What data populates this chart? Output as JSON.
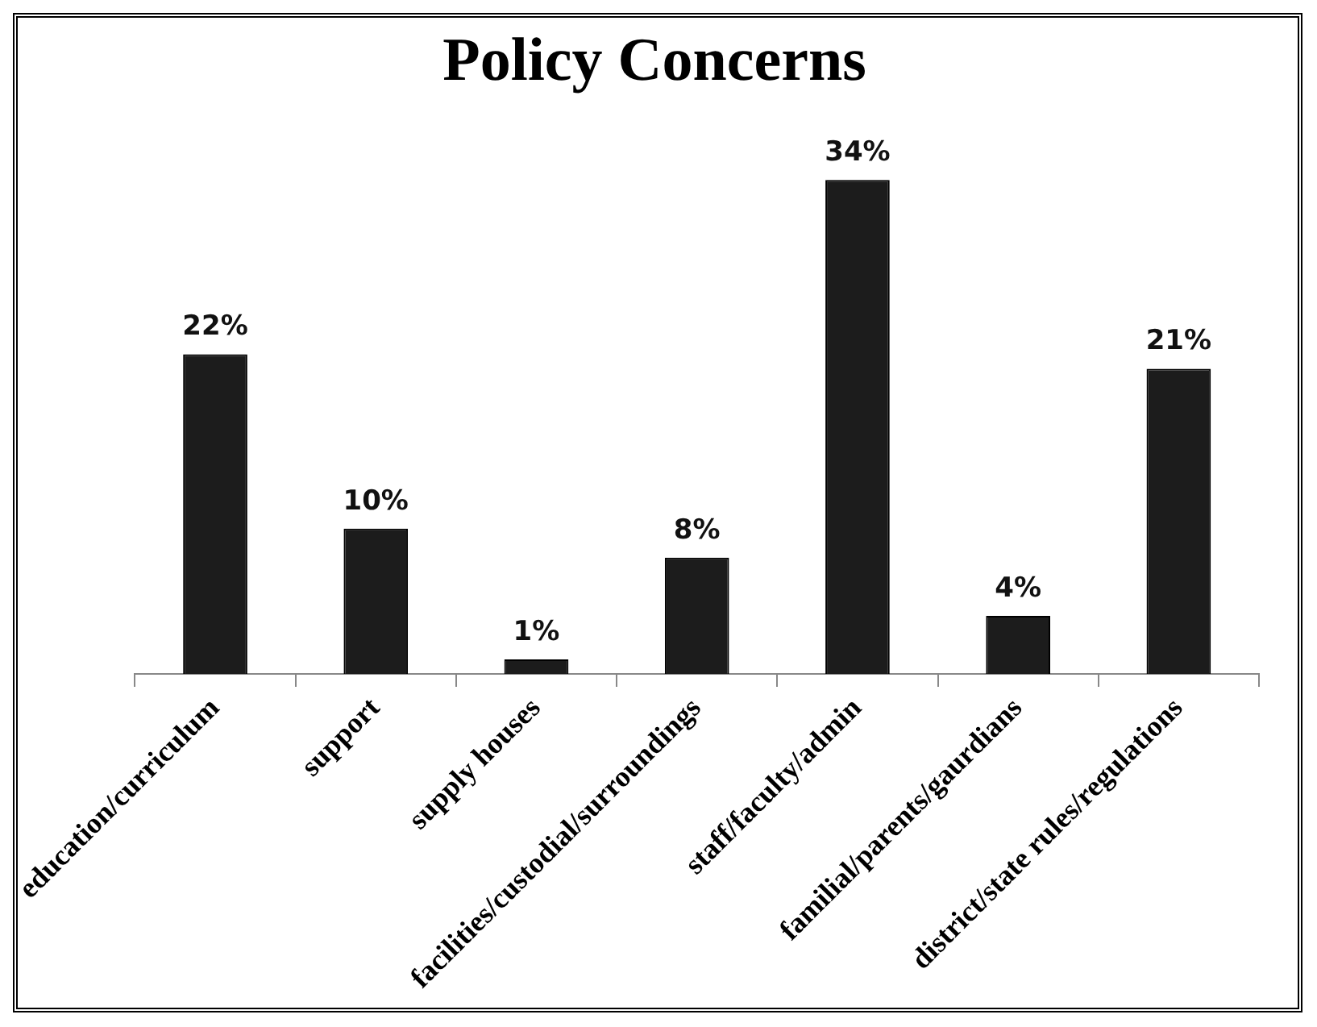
{
  "chart_data": {
    "type": "bar",
    "title": "Policy Concerns",
    "categories": [
      "education/curriculum",
      "support",
      "supply houses",
      "facilities/custodial/surroundings",
      "staff/faculty/admin",
      "familial/parents/gaurdians",
      "district/state rules/regulations"
    ],
    "values": [
      22,
      10,
      1,
      8,
      34,
      4,
      21
    ],
    "value_labels": [
      "22%",
      "10%",
      "1%",
      "8%",
      "34%",
      "4%",
      "21%"
    ],
    "color": "#1c1c1c",
    "legend": false
  }
}
